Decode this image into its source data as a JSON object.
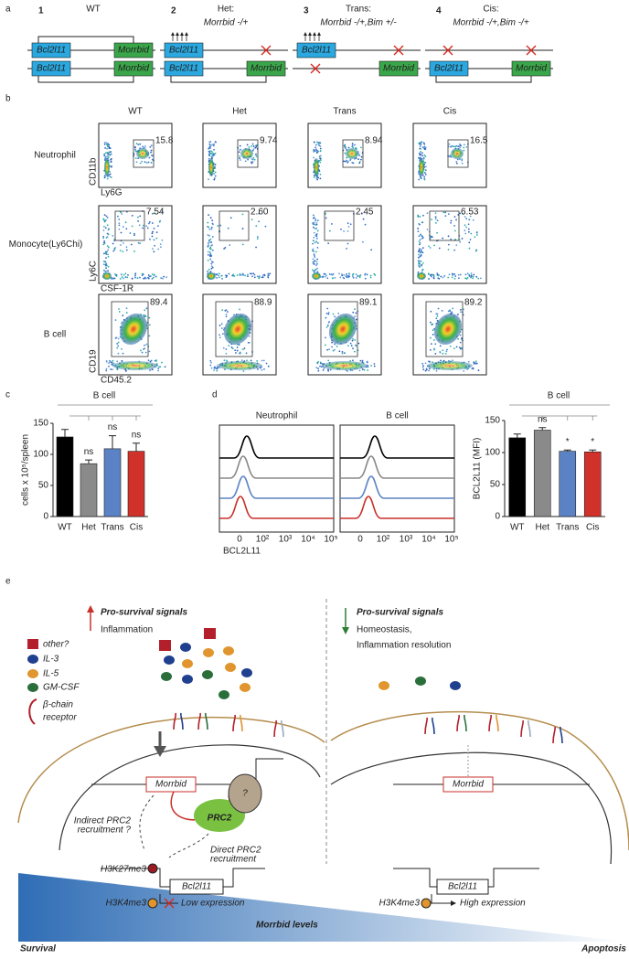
{
  "panel_a": {
    "label": "a",
    "gene_bcl": "Bcl2l11",
    "gene_morrbid": "Morrbid",
    "genotypes": [
      {
        "number": "1",
        "title": "WT"
      },
      {
        "number": "2",
        "title": "Het:",
        "genotype": "Morrbid -/+"
      },
      {
        "number": "3",
        "title": "Trans:",
        "genotype": "Morrbid -/+,Bim +/-"
      },
      {
        "number": "4",
        "title": "Cis:",
        "genotype": "Morrbid -/+,Bim -/+"
      }
    ]
  },
  "panel_b": {
    "label": "b",
    "columns": [
      "WT",
      "Het",
      "Trans",
      "Cis"
    ],
    "highlight_column": 3,
    "highlight_color": "#d7261e",
    "rows": [
      {
        "name": "Neutrophil",
        "y_axis": "CD11b",
        "x_axis": "Ly6G",
        "gates": [
          "15.8",
          "9.74",
          "8.94",
          "16.5"
        ]
      },
      {
        "name": "Monocyte(Ly6Chi)",
        "y_axis": "Ly6C",
        "x_axis": "CSF-1R",
        "gates": [
          "7.54",
          "2.60",
          "2.45",
          "6.53"
        ]
      },
      {
        "name": "B cell",
        "y_axis": "CD19",
        "x_axis": "CD45.2",
        "gates": [
          "89.4",
          "88.9",
          "89.1",
          "89.2"
        ]
      }
    ]
  },
  "panel_c": {
    "label": "c"
  },
  "panel_d": {
    "label": "d",
    "panels": [
      "Neutrophil",
      "B cell"
    ],
    "x_label": "BCL2L11",
    "xticks": [
      "0",
      "10²",
      "10³",
      "10⁴",
      "10⁵"
    ],
    "colors": [
      "#000000",
      "#888888",
      "#5b82c4",
      "#c8312b"
    ]
  },
  "chart_data": [
    {
      "type": "bar",
      "title": "B cell",
      "y_label": "cells x 10⁵/spleen",
      "categories": [
        "WT",
        "Het",
        "Trans",
        "Cis"
      ],
      "values": [
        128,
        85,
        109,
        105
      ],
      "errors": [
        12,
        6,
        21,
        13
      ],
      "colors": [
        "#000000",
        "#8a8a8a",
        "#5b82c4",
        "#d0312b"
      ],
      "annotations": [
        null,
        "ns",
        "ns",
        "ns"
      ],
      "ylim": [
        0,
        150
      ],
      "yticks": [
        0,
        50,
        100,
        150
      ]
    },
    {
      "type": "bar",
      "title": "B cell",
      "y_label": "BCL2L11 (MFI)",
      "categories": [
        "WT",
        "Het",
        "Trans",
        "Cis"
      ],
      "values": [
        123,
        135,
        102,
        101
      ],
      "errors": [
        6,
        4,
        2,
        3
      ],
      "colors": [
        "#000000",
        "#8a8a8a",
        "#5b82c4",
        "#d0312b"
      ],
      "annotations": [
        null,
        "ns",
        "*",
        "*"
      ],
      "ylim": [
        0,
        150
      ],
      "yticks": [
        0,
        50,
        100,
        150
      ]
    }
  ],
  "panel_e": {
    "label": "e",
    "left": {
      "heading": "Pro-survival signals",
      "subheading": "Inflammation",
      "legend": [
        "other?",
        "IL-3",
        "IL-5",
        "GM-CSF",
        "β-chain",
        "receptor"
      ],
      "morrbid": "Morrbid",
      "prc2": "PRC2",
      "question": "?",
      "indirect": [
        "Indirect PRC2",
        "recruitment ?"
      ],
      "direct": [
        "Direct PRC2",
        "recruitment"
      ],
      "h3k27": "H3K27me3",
      "bcl": "Bcl2l11",
      "h3k4": "H3K4me3",
      "expression": "Low expression"
    },
    "right": {
      "heading": "Pro-survival signals",
      "subheading": [
        "Homeostasis,",
        "Inflammation resolution"
      ],
      "morrbid": "Morrbid",
      "bcl": "Bcl2l11",
      "h3k4": "H3K4me3",
      "expression": "High expression"
    },
    "gradient_label": "Morrbid levels",
    "left_end": "Survival",
    "right_end": "Apoptosis"
  }
}
